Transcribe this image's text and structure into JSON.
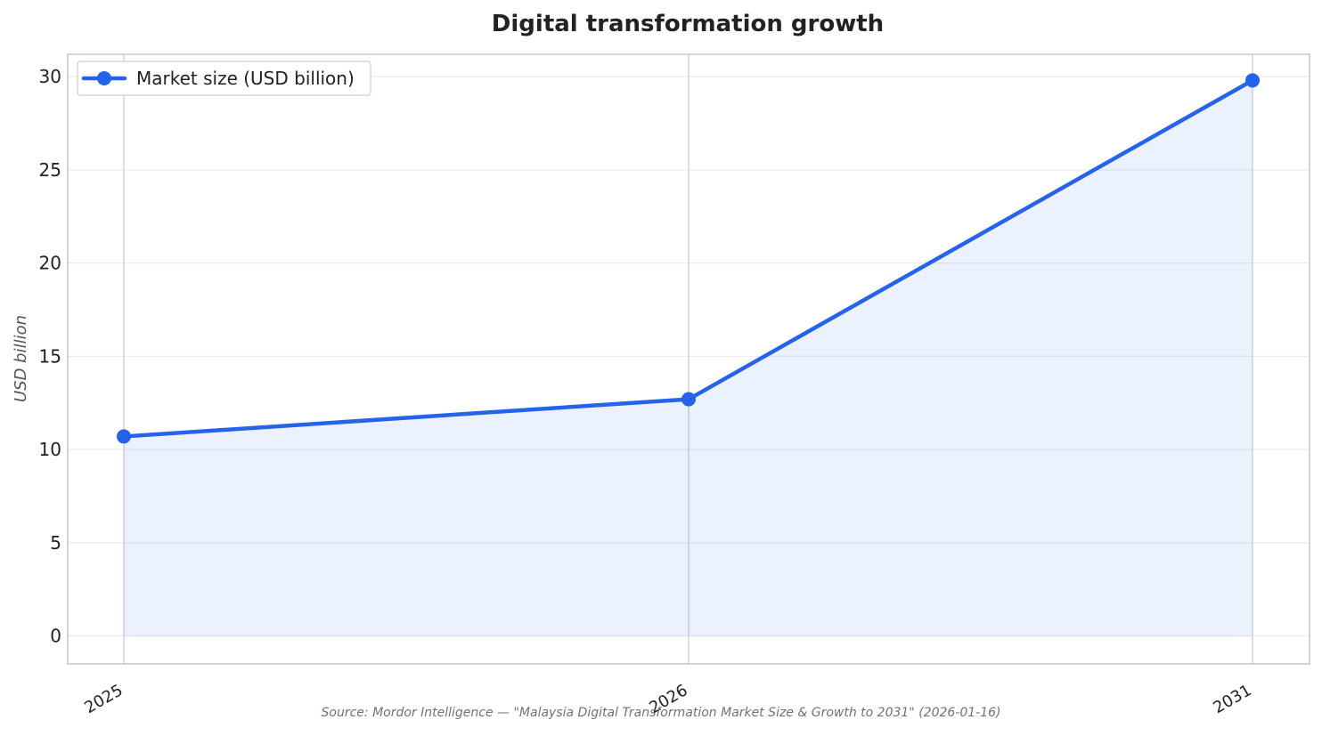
{
  "chart_data": {
    "type": "line",
    "title": "Digital transformation growth",
    "xlabel": "",
    "ylabel": "USD billion",
    "categories": [
      "2025",
      "2026",
      "2031"
    ],
    "x": [
      2025,
      2026,
      2031
    ],
    "x_spacing": "categorical",
    "series": [
      {
        "name": "Market size (USD billion)",
        "values": [
          10.7,
          12.7,
          29.8
        ],
        "color": "#2563eb",
        "fill_color": "#2563eb",
        "area_fill": true,
        "markers": true
      }
    ],
    "ylim": [
      -1.5,
      31.2
    ],
    "yticks": [
      0,
      5,
      10,
      15,
      20,
      25,
      30
    ],
    "grid": true,
    "legend_position": "top-left",
    "source_note": "Source: Mordor Intelligence — \"Malaysia Digital Transformation Market Size & Growth to 2031\" (2026-01-16)"
  }
}
